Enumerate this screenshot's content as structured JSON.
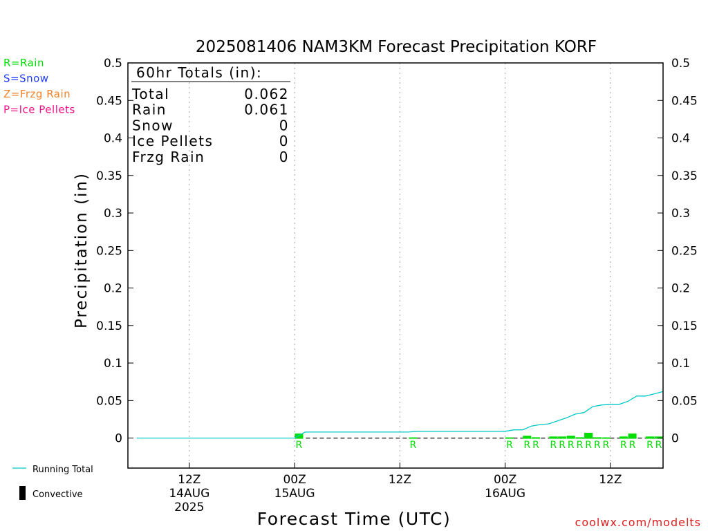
{
  "chart_data": {
    "type": "bar",
    "title": "2025081406 NAM3KM Forecast Precipitation KORF",
    "xlabel": "Forecast Time (UTC)",
    "ylabel": "Precipitation (in)",
    "ylim": [
      -0.04,
      0.5
    ],
    "yticks": [
      0,
      0.05,
      0.1,
      0.15,
      0.2,
      0.25,
      0.3,
      0.35,
      0.4,
      0.45,
      0.5
    ],
    "ytick_labels": [
      "0",
      "0.05",
      "0.1",
      "0.15",
      "0.2",
      "0.25",
      "0.3",
      "0.35",
      "0.4",
      "0.45",
      "0.5"
    ],
    "x_unit": "forecast hour",
    "xlim": [
      -1,
      60
    ],
    "x_gridlines": [
      6,
      18,
      30,
      42,
      54
    ],
    "x_ticks": [
      {
        "hour": 6,
        "label": "12Z",
        "sub": "14AUG",
        "sub2": "2025"
      },
      {
        "hour": 18,
        "label": "00Z",
        "sub": "15AUG",
        "sub2": ""
      },
      {
        "hour": 30,
        "label": "12Z",
        "sub": "",
        "sub2": ""
      },
      {
        "hour": 42,
        "label": "00Z",
        "sub": "16AUG",
        "sub2": ""
      },
      {
        "hour": 54,
        "label": "12Z",
        "sub": "",
        "sub2": ""
      }
    ],
    "hourly_precip": [
      {
        "hour": 19,
        "value": 0.007,
        "type": "R"
      },
      {
        "hour": 32,
        "value": 0.001,
        "type": "R"
      },
      {
        "hour": 43,
        "value": 0.001,
        "type": "R"
      },
      {
        "hour": 45,
        "value": 0.004,
        "type": "R"
      },
      {
        "hour": 46,
        "value": 0.002,
        "type": "R"
      },
      {
        "hour": 48,
        "value": 0.003,
        "type": "R"
      },
      {
        "hour": 49,
        "value": 0.003,
        "type": "R"
      },
      {
        "hour": 50,
        "value": 0.004,
        "type": "R"
      },
      {
        "hour": 51,
        "value": 0.002,
        "type": "R"
      },
      {
        "hour": 52,
        "value": 0.008,
        "type": "R"
      },
      {
        "hour": 53,
        "value": 0.002,
        "type": "R"
      },
      {
        "hour": 54,
        "value": 0.001,
        "type": "R"
      },
      {
        "hour": 56,
        "value": 0.003,
        "type": "R"
      },
      {
        "hour": 57,
        "value": 0.007,
        "type": "R"
      },
      {
        "hour": 59,
        "value": 0.003,
        "type": "R"
      },
      {
        "hour": 60,
        "value": 0.003,
        "type": "R"
      }
    ],
    "running_total": {
      "name": "Running Total",
      "x": [
        0,
        18,
        18.3,
        19.2,
        31,
        32,
        42,
        43,
        44,
        45,
        46,
        47,
        48,
        49,
        50,
        51,
        52,
        53,
        54,
        55,
        56,
        57,
        58,
        59,
        60
      ],
      "y": [
        0,
        0,
        0.002,
        0.008,
        0.008,
        0.009,
        0.009,
        0.011,
        0.011,
        0.016,
        0.018,
        0.019,
        0.023,
        0.027,
        0.032,
        0.034,
        0.042,
        0.044,
        0.045,
        0.045,
        0.049,
        0.056,
        0.056,
        0.059,
        0.062
      ]
    },
    "totals": {
      "header": "60hr Totals (in):",
      "rows": [
        {
          "label": "Total",
          "value": "0.062"
        },
        {
          "label": "Rain",
          "value": "0.061"
        },
        {
          "label": "Snow",
          "value": "0"
        },
        {
          "label": "Ice Pellets",
          "value": "0"
        },
        {
          "label": "Frzg Rain",
          "value": "0"
        }
      ]
    },
    "type_legend": [
      {
        "label": "R=Rain",
        "color": "#00dd00"
      },
      {
        "label": "S=Snow",
        "color": "#1e3cff"
      },
      {
        "label": "Z=Frzg Rain",
        "color": "#f08228"
      },
      {
        "label": "P=Ice Pellets",
        "color": "#f0148c"
      }
    ],
    "bottom_legend": [
      {
        "label": "Running Total",
        "symbol": "line",
        "color": "#00c8c8"
      },
      {
        "label": "Convective",
        "symbol": "bar",
        "color": "#000000"
      }
    ],
    "colors": {
      "rain": "#00dd00",
      "running_total": "#00c8c8",
      "axis": "#000000",
      "grid": "#a0a0a0",
      "credit": "#dc1e1e"
    },
    "credit": "coolwx.com/modelts"
  }
}
